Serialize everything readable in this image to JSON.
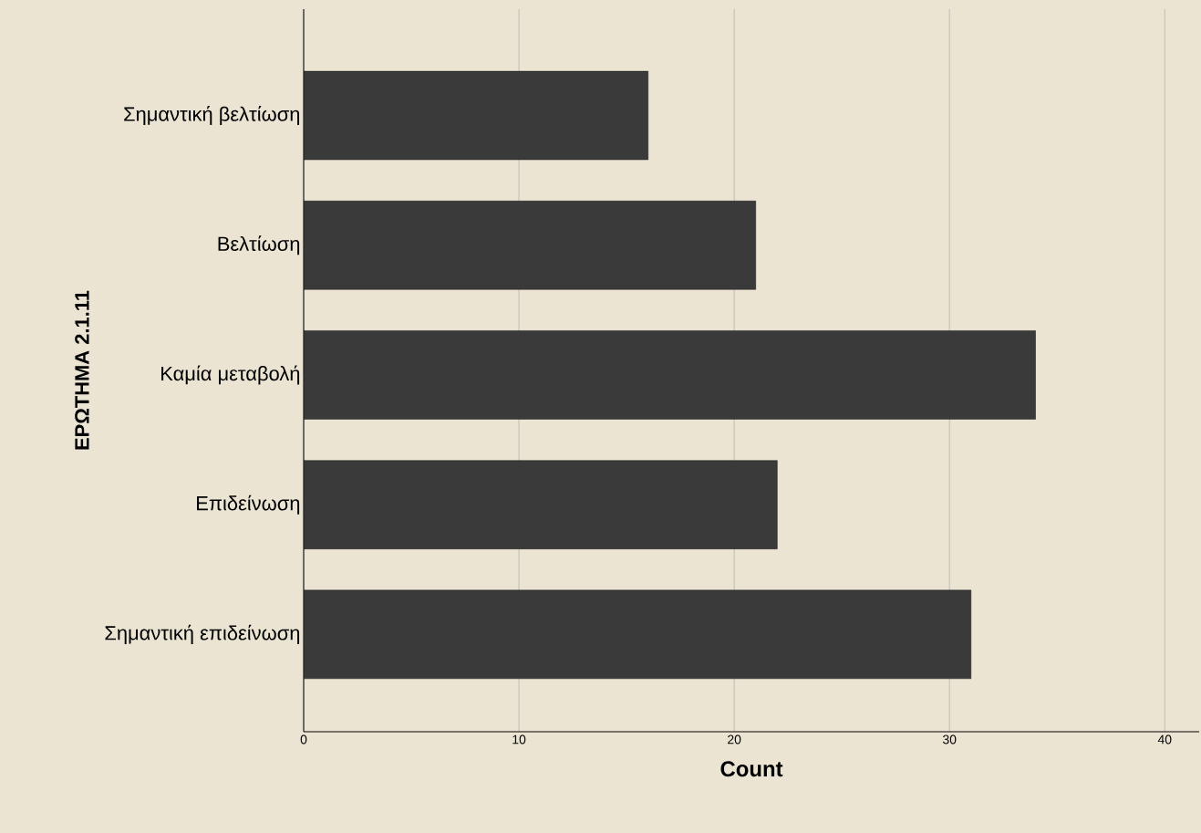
{
  "chart_data": {
    "type": "bar",
    "orientation": "horizontal",
    "xlabel": "Count",
    "ylabel": "ΕΡΩΤΗΜΑ 2.1.11",
    "categories": [
      "Σημαντική βελτίωση",
      "Βελτίωση",
      "Καμία μεταβολή",
      "Επιδείνωση",
      "Σημαντική επιδείνωση"
    ],
    "values": [
      16,
      21,
      34,
      22,
      31
    ],
    "color": "#3a3a3a",
    "xlim": [
      0,
      41.6
    ],
    "xticks": [
      0,
      10,
      20,
      30,
      40
    ],
    "grid": "x"
  }
}
